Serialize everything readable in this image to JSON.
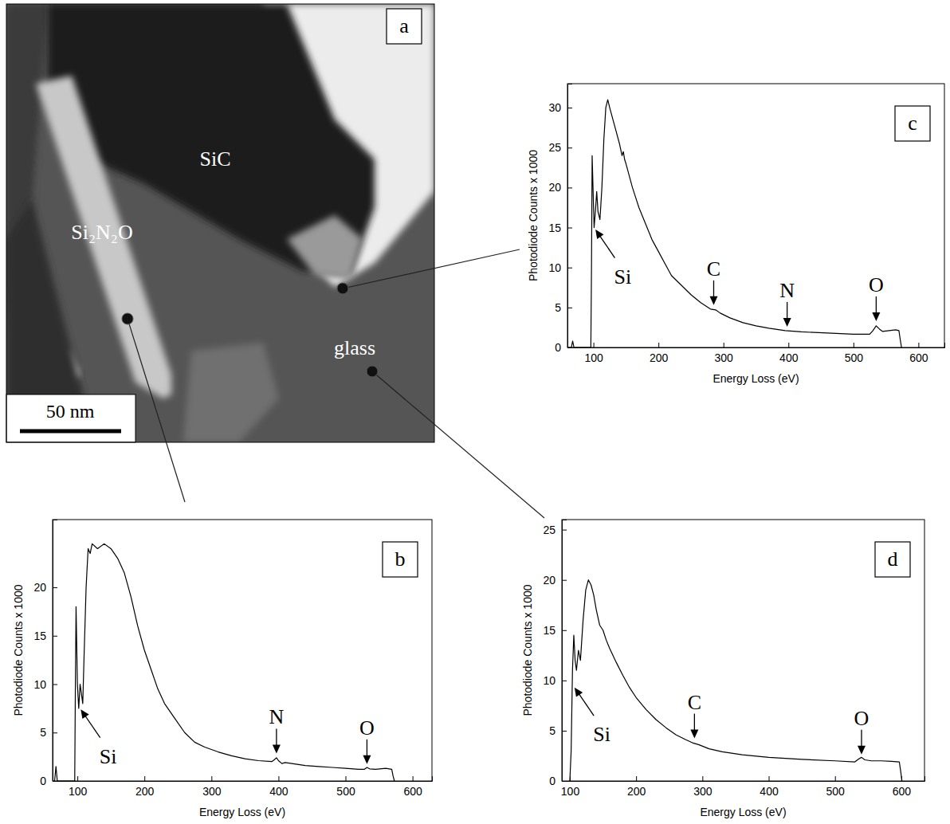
{
  "micrograph": {
    "panel": "a",
    "labels": [
      {
        "text": "SiC"
      },
      {
        "text": "Si₂N₂O"
      },
      {
        "text": "glass"
      }
    ],
    "scale_bar": "50 nm"
  },
  "chart_data": [
    {
      "type": "line",
      "panel": "b",
      "xlabel": "Energy Loss (eV)",
      "ylabel": "Photodiode Counts x 1000",
      "color": "#000000",
      "x": [
        63,
        66,
        68,
        70,
        72,
        94,
        96,
        97,
        98,
        100,
        102,
        104,
        106,
        108,
        110,
        113,
        116,
        119,
        122,
        130,
        140,
        150,
        160,
        170,
        180,
        190,
        200,
        210,
        220,
        230,
        245,
        260,
        275,
        290,
        310,
        330,
        350,
        370,
        390,
        394,
        397,
        400,
        405,
        410,
        420,
        440,
        460,
        480,
        500,
        520,
        528,
        532,
        536,
        545,
        560,
        569,
        571,
        573
      ],
      "values": [
        0,
        0,
        1.5,
        0,
        0,
        0,
        0,
        10,
        18,
        10,
        7.5,
        10,
        9,
        8,
        13,
        20,
        24,
        23.5,
        24.5,
        24,
        24.5,
        24,
        23,
        21.5,
        19,
        16,
        13.5,
        11.5,
        9.5,
        8,
        6.5,
        5,
        4,
        3.5,
        3,
        2.6,
        2.3,
        2.1,
        2.0,
        2.2,
        2.4,
        2.1,
        1.8,
        1.9,
        1.8,
        1.6,
        1.5,
        1.4,
        1.3,
        1.2,
        1.2,
        1.4,
        1.25,
        1.2,
        1.3,
        1.2,
        0.5,
        0
      ],
      "xlim": [
        63,
        629
      ],
      "xticks": [
        100,
        200,
        300,
        400,
        500,
        600
      ],
      "ylim": [
        0,
        27
      ],
      "yticks": [
        0,
        5,
        10,
        15,
        20
      ],
      "annotations": [
        {
          "text": "Si",
          "x": 103,
          "y": 7.6
        },
        {
          "text": "N",
          "x": 397,
          "y": 2.6
        },
        {
          "text": "O",
          "x": 532,
          "y": 1.5
        }
      ]
    },
    {
      "type": "line",
      "panel": "c",
      "xlabel": "Energy Loss (eV)",
      "ylabel": "Photodiode Counts x 1000",
      "color": "#000000",
      "x": [
        60,
        66,
        68,
        70,
        72,
        94,
        96,
        97,
        98,
        100,
        101,
        103,
        105,
        107,
        110,
        113,
        116,
        119,
        122,
        125,
        130,
        135,
        140,
        144,
        146,
        148,
        150,
        155,
        160,
        170,
        180,
        190,
        200,
        210,
        220,
        235,
        250,
        265,
        280,
        288,
        295,
        310,
        330,
        350,
        370,
        395,
        420,
        460,
        500,
        525,
        530,
        535,
        540,
        545,
        555,
        565,
        570,
        572,
        574
      ],
      "values": [
        0,
        0,
        0.8,
        0,
        0,
        0,
        0,
        10,
        24,
        18,
        15,
        17,
        19.5,
        17,
        16,
        20,
        26,
        30,
        31,
        30,
        28.5,
        27,
        25.5,
        24,
        24.5,
        23.5,
        23,
        21.5,
        20,
        17.5,
        15.5,
        13.5,
        12,
        10.5,
        9,
        7.8,
        6.6,
        5.6,
        4.8,
        4.7,
        4.3,
        3.7,
        3.1,
        2.7,
        2.4,
        2.1,
        1.95,
        1.8,
        1.65,
        1.65,
        2.1,
        2.7,
        2.3,
        2.0,
        2.1,
        2.2,
        2.1,
        1.0,
        0
      ],
      "xlim": [
        60,
        640
      ],
      "xticks": [
        100,
        200,
        300,
        400,
        500,
        600
      ],
      "ylim": [
        0,
        33
      ],
      "yticks": [
        0,
        5,
        10,
        15,
        20,
        25,
        30
      ],
      "annotations": [
        {
          "text": "Si",
          "x": 101,
          "y": 15
        },
        {
          "text": "C",
          "x": 285,
          "y": 5
        },
        {
          "text": "N",
          "x": 398,
          "y": 2.3
        },
        {
          "text": "O",
          "x": 535,
          "y": 3
        }
      ]
    },
    {
      "type": "line",
      "panel": "d",
      "xlabel": "Energy Loss (eV)",
      "ylabel": "Photodiode Counts x 1000",
      "color": "#000000",
      "x": [
        100,
        102,
        104,
        106,
        108,
        110,
        113,
        116,
        120,
        124,
        128,
        132,
        136,
        140,
        145,
        150,
        155,
        160,
        170,
        180,
        190,
        200,
        215,
        230,
        245,
        260,
        275,
        285,
        295,
        310,
        330,
        360,
        400,
        450,
        500,
        530,
        536,
        540,
        545,
        555,
        570,
        585,
        597,
        599,
        601
      ],
      "values": [
        0,
        3,
        11,
        14.5,
        12,
        11,
        13,
        12,
        16,
        19,
        20,
        19.5,
        18.5,
        17,
        15.5,
        15,
        14,
        13.2,
        11.8,
        10.5,
        9.3,
        8.3,
        7.1,
        6.1,
        5.3,
        4.6,
        4.1,
        3.8,
        3.6,
        3.2,
        2.9,
        2.6,
        2.35,
        2.15,
        2.0,
        1.9,
        2.2,
        2.35,
        2.1,
        2.0,
        2.0,
        1.95,
        1.9,
        1.0,
        0
      ],
      "xlim": [
        88,
        635
      ],
      "xticks": [
        100,
        200,
        300,
        400,
        500,
        600
      ],
      "ylim": [
        0,
        26
      ],
      "yticks": [
        0,
        5,
        10,
        15,
        20,
        25
      ],
      "annotations": [
        {
          "text": "Si",
          "x": 105,
          "y": 9.5
        },
        {
          "text": "C",
          "x": 288,
          "y": 4
        },
        {
          "text": "O",
          "x": 540,
          "y": 2.4
        }
      ]
    }
  ]
}
